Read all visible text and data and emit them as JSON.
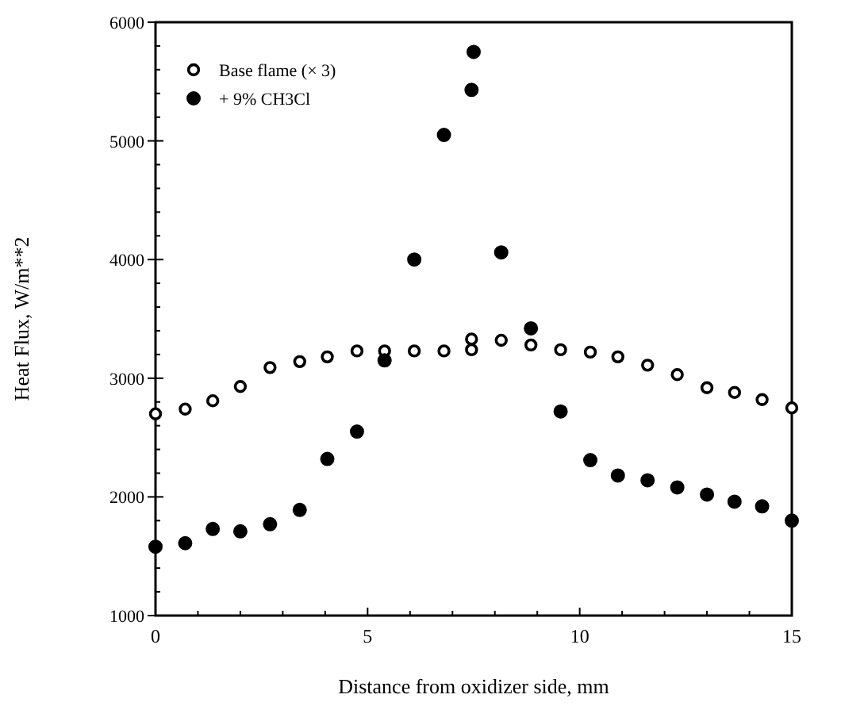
{
  "chart_data": {
    "type": "scatter",
    "xlabel": "Distance from oxidizer side, mm",
    "ylabel": "Heat Flux, W/m**2",
    "xlim": [
      0,
      15
    ],
    "ylim": [
      1000,
      6000
    ],
    "xticks": [
      0,
      {
        "value": 1,
        "label": null
      },
      {
        "value": 2,
        "label": null
      },
      {
        "value": 3,
        "label": null
      },
      {
        "value": 4,
        "label": null
      },
      5,
      {
        "value": 6,
        "label": null
      },
      {
        "value": 7,
        "label": null
      },
      {
        "value": 8,
        "label": null
      },
      {
        "value": 9,
        "label": null
      },
      10,
      {
        "value": 11,
        "label": null
      },
      {
        "value": 12,
        "label": null
      },
      {
        "value": 13,
        "label": null
      },
      {
        "value": 14,
        "label": null
      },
      15
    ],
    "yticks": [
      1000,
      {
        "value": 1200,
        "label": null
      },
      {
        "value": 1400,
        "label": null
      },
      {
        "value": 1600,
        "label": null
      },
      {
        "value": 1800,
        "label": null
      },
      2000,
      {
        "value": 2200,
        "label": null
      },
      {
        "value": 2400,
        "label": null
      },
      {
        "value": 2600,
        "label": null
      },
      {
        "value": 2800,
        "label": null
      },
      3000,
      {
        "value": 3200,
        "label": null
      },
      {
        "value": 3400,
        "label": null
      },
      {
        "value": 3600,
        "label": null
      },
      {
        "value": 3800,
        "label": null
      },
      4000,
      {
        "value": 4200,
        "label": null
      },
      {
        "value": 4400,
        "label": null
      },
      {
        "value": 4600,
        "label": null
      },
      {
        "value": 4800,
        "label": null
      },
      5000,
      {
        "value": 5200,
        "label": null
      },
      {
        "value": 5400,
        "label": null
      },
      {
        "value": 5600,
        "label": null
      },
      {
        "value": 5800,
        "label": null
      },
      6000
    ],
    "legend": "top left",
    "marker": "circle",
    "grid": false,
    "series": [
      {
        "name": "Base flame (× 3)",
        "color": "#000000",
        "x": [
          0,
          0.7,
          1.35,
          2.0,
          2.7,
          3.4,
          4.05,
          4.75,
          5.4,
          6.1,
          6.8,
          7.45,
          7.45,
          8.15,
          8.85,
          9.55,
          10.25,
          10.9,
          11.6,
          12.3,
          13.0,
          13.65,
          14.3,
          15
        ],
        "values": [
          2700,
          2740,
          2810,
          2930,
          3090,
          3140,
          3180,
          3230,
          3230,
          3230,
          3230,
          3330,
          3240,
          3320,
          3280,
          3240,
          3220,
          3180,
          3110,
          3030,
          2920,
          2880,
          2820,
          2750
        ]
      },
      {
        "name": "+ 9% CH3Cl",
        "color": "#000000",
        "x": [
          0,
          0.7,
          1.35,
          2.0,
          2.7,
          3.4,
          4.05,
          4.75,
          5.4,
          6.1,
          6.8,
          7.45,
          7.5,
          8.15,
          8.85,
          9.55,
          10.25,
          10.9,
          11.6,
          12.3,
          13.0,
          13.65,
          14.3,
          15
        ],
        "values": [
          1580,
          1610,
          1730,
          1710,
          1770,
          1890,
          2320,
          2550,
          3150,
          4000,
          5050,
          5430,
          5750,
          4060,
          3420,
          2720,
          2310,
          2180,
          2140,
          2080,
          2020,
          1960,
          1920,
          1800
        ]
      }
    ]
  }
}
